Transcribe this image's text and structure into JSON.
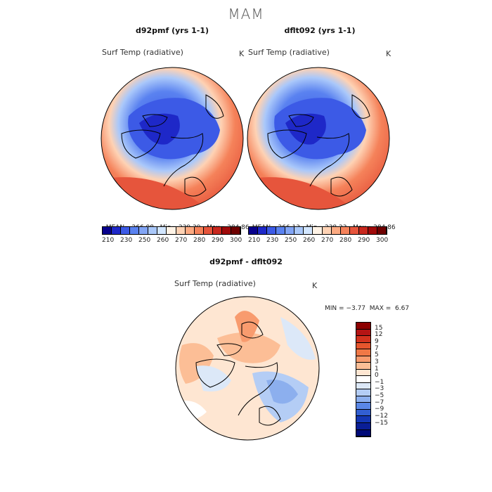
{
  "season": "MAM",
  "panels": [
    {
      "id": "left",
      "title": "d92pmf (yrs 1-1)",
      "field": "Surf Temp (radiative)",
      "unit": "K",
      "stats": {
        "mean_label": "MEAN=",
        "mean": "266.08",
        "min_label": "Min=",
        "min": "239.39",
        "max_label": "Max=",
        "max": "284.86"
      }
    },
    {
      "id": "right",
      "title": "dflt092 (yrs 1-1)",
      "field": "Surf Temp (radiative)",
      "unit": "K",
      "stats": {
        "mean_label": "MEAN=",
        "mean": "266.13",
        "min_label": "Min=",
        "min": "238.23",
        "max_label": "Max=",
        "max": "284.86"
      }
    }
  ],
  "colorbar_top": {
    "ticks": [
      "210",
      "230",
      "250",
      "260",
      "270",
      "280",
      "290",
      "300"
    ],
    "colors": [
      "#08008c",
      "#1e28c8",
      "#3c5ae6",
      "#5a82f0",
      "#82a5f5",
      "#aac8fa",
      "#d2e6ff",
      "#fff3e6",
      "#fed2b4",
      "#fcaa82",
      "#f5825a",
      "#e6553c",
      "#c8281e",
      "#a00a0a",
      "#6e0000"
    ]
  },
  "diff": {
    "title": "d92pmf - dflt092",
    "field": "Surf Temp (radiative)",
    "unit": "K",
    "min_label": "MIN =",
    "min": "−3.77",
    "max_label": "MAX =",
    "max": "6.67",
    "ticks": [
      "15",
      "12",
      "9",
      "7",
      "5",
      "3",
      "1",
      "0",
      "−1",
      "−3",
      "−5",
      "−7",
      "−9",
      "−12",
      "−15"
    ],
    "colors": [
      "#8c0000",
      "#b41414",
      "#d2321e",
      "#e6552d",
      "#f07846",
      "#f89b6e",
      "#fcbe96",
      "#fee6d2",
      "#ffffff",
      "#dce8f8",
      "#b4cdf5",
      "#8cafee",
      "#5a87e6",
      "#325fd2",
      "#1437b4",
      "#0a1e96",
      "#000a78"
    ]
  }
}
